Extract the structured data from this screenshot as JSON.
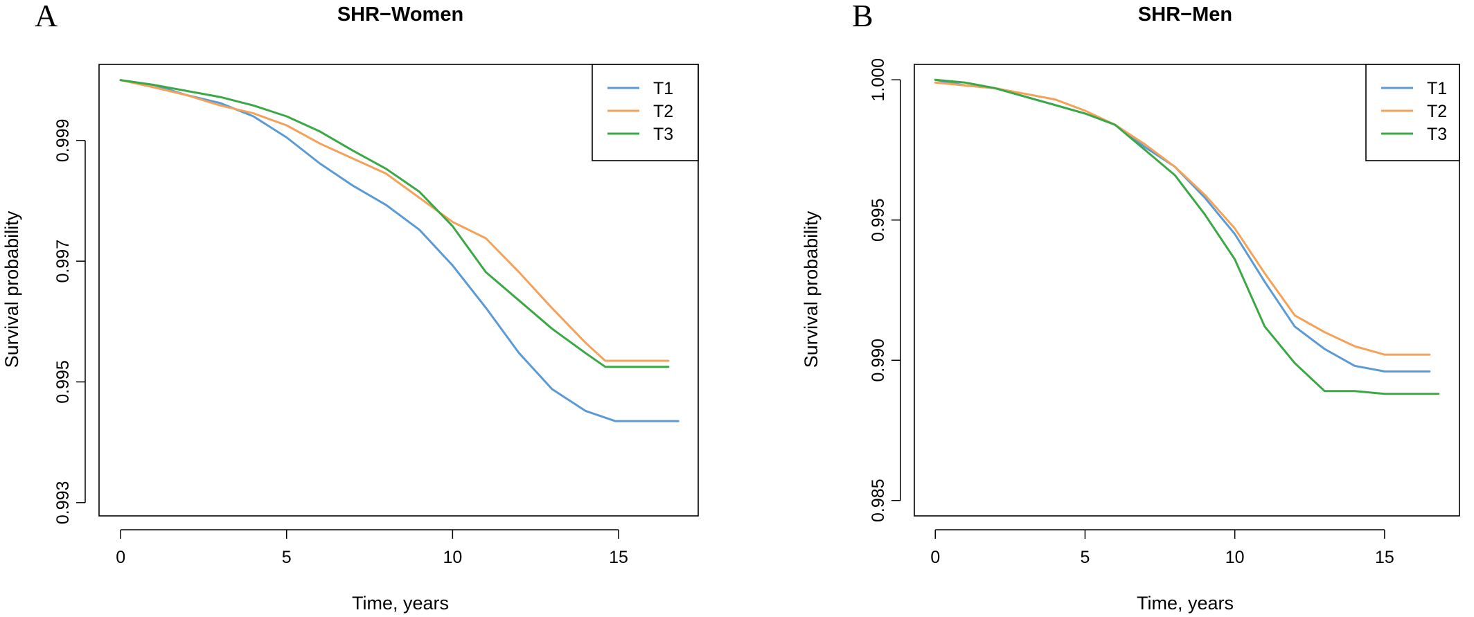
{
  "panels": [
    {
      "letter": "A"
    },
    {
      "letter": "B"
    }
  ],
  "colors": {
    "T1": "#5b9bd5",
    "T2": "#f4a259",
    "T3": "#3aa845"
  },
  "chart_data": [
    {
      "type": "line",
      "title": "SHR−Women",
      "xlabel": "Time, years",
      "ylabel": "Survival probability",
      "xlim": [
        -0.65,
        17.4
      ],
      "ylim": [
        0.99278,
        1.00026
      ],
      "xticks": [
        0,
        5,
        10,
        15
      ],
      "xtick_labels": [
        "0",
        "5",
        "10",
        "15"
      ],
      "yticks": [
        0.993,
        0.995,
        0.997,
        0.999
      ],
      "ytick_labels": [
        "0.993",
        "0.995",
        "0.997",
        "0.999"
      ],
      "grid": false,
      "legend_position": "top-right",
      "series": [
        {
          "name": "T1",
          "color": "#5b9bd5",
          "x": [
            0,
            1,
            2,
            3,
            4,
            5,
            6,
            7,
            8,
            9,
            10,
            11,
            12,
            13,
            14,
            14.9,
            16.8
          ],
          "y": [
            1.0,
            0.99992,
            0.99975,
            0.99962,
            0.9994,
            0.99905,
            0.99862,
            0.99825,
            0.99793,
            0.99752,
            0.99693,
            0.99623,
            0.99548,
            0.99488,
            0.99452,
            0.99435,
            0.99435
          ]
        },
        {
          "name": "T2",
          "color": "#f4a259",
          "x": [
            0,
            1,
            2,
            3,
            4,
            5,
            6,
            7,
            8,
            9,
            10,
            11,
            12,
            13,
            14,
            14.6,
            16.5
          ],
          "y": [
            1.0,
            0.99988,
            0.99975,
            0.99958,
            0.99945,
            0.99925,
            0.99895,
            0.9987,
            0.99845,
            0.99805,
            0.99765,
            0.99738,
            0.99682,
            0.99622,
            0.99565,
            0.99535,
            0.99535
          ]
        },
        {
          "name": "T3",
          "color": "#3aa845",
          "x": [
            0,
            1,
            2,
            3,
            4,
            5,
            6,
            7,
            8,
            9,
            10,
            11,
            12,
            13,
            14,
            14.6,
            16.5
          ],
          "y": [
            1.0,
            0.99992,
            0.99982,
            0.99972,
            0.99958,
            0.9994,
            0.99915,
            0.99883,
            0.99853,
            0.99815,
            0.99758,
            0.99682,
            0.99635,
            0.99588,
            0.99548,
            0.99525,
            0.99525
          ]
        }
      ]
    },
    {
      "type": "line",
      "title": "SHR−Men",
      "xlabel": "Time, years",
      "ylabel": "Survival probability",
      "xlim": [
        -0.7,
        17.5
      ],
      "ylim": [
        0.98445,
        1.00055
      ],
      "xticks": [
        0,
        5,
        10,
        15
      ],
      "xtick_labels": [
        "0",
        "5",
        "10",
        "15"
      ],
      "yticks": [
        0.985,
        0.99,
        0.995,
        1.0
      ],
      "ytick_labels": [
        "0.985",
        "0.990",
        "0.995",
        "1.000"
      ],
      "grid": false,
      "legend_position": "top-right",
      "series": [
        {
          "name": "T1",
          "color": "#5b9bd5",
          "x": [
            0,
            1,
            2,
            3,
            4,
            5,
            6,
            7,
            8,
            9,
            10,
            11,
            12,
            13,
            14,
            15,
            16.5
          ],
          "y": [
            1.0,
            0.9998,
            0.9997,
            0.9994,
            0.9991,
            0.9988,
            0.9984,
            0.9976,
            0.9969,
            0.9958,
            0.9945,
            0.9928,
            0.9912,
            0.9904,
            0.9898,
            0.9896,
            0.9896
          ]
        },
        {
          "name": "T2",
          "color": "#f4a259",
          "x": [
            0,
            1,
            2,
            3,
            4,
            5,
            6,
            7,
            8,
            9,
            10,
            11,
            12,
            13,
            14,
            15,
            16.5
          ],
          "y": [
            0.9999,
            0.9998,
            0.9997,
            0.9995,
            0.9993,
            0.9989,
            0.9984,
            0.9977,
            0.9969,
            0.9959,
            0.9947,
            0.9931,
            0.9916,
            0.991,
            0.9905,
            0.9902,
            0.9902
          ]
        },
        {
          "name": "T3",
          "color": "#3aa845",
          "x": [
            0,
            1,
            2,
            3,
            4,
            5,
            6,
            7,
            8,
            9,
            10,
            11,
            12,
            13,
            14,
            15,
            16.8
          ],
          "y": [
            1.0,
            0.9999,
            0.9997,
            0.9994,
            0.9991,
            0.9988,
            0.9984,
            0.9975,
            0.9966,
            0.9952,
            0.9936,
            0.9912,
            0.9899,
            0.9889,
            0.9889,
            0.9888,
            0.9888
          ]
        }
      ]
    }
  ]
}
